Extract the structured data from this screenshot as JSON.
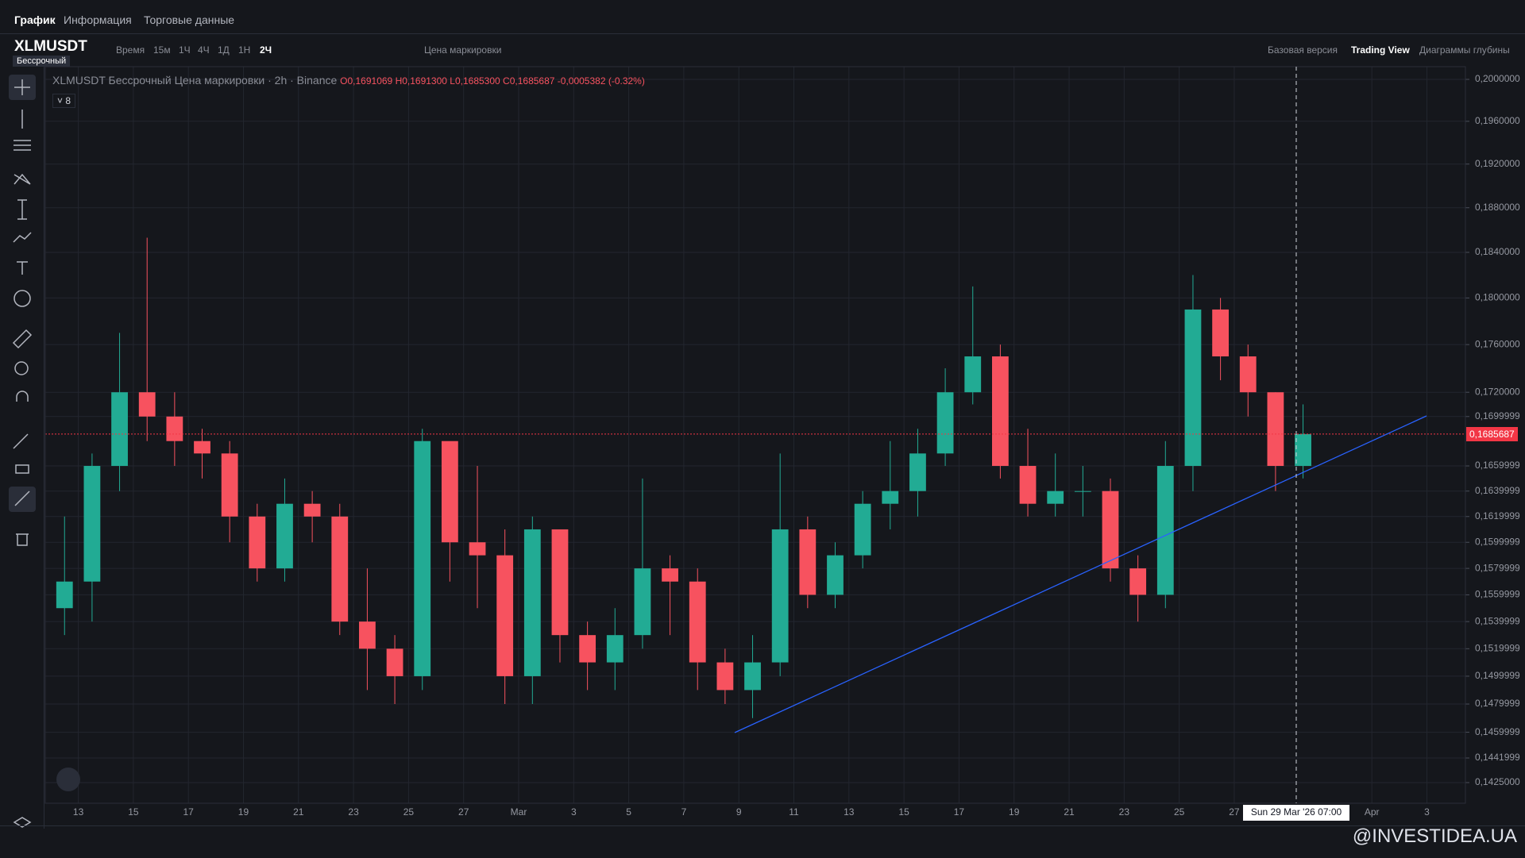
{
  "ui": {
    "tabs": [
      "График",
      "Информация",
      "Торговые данные"
    ],
    "symbol": "XLMUSDT",
    "contract": "Бессрочный",
    "intervals": [
      "Время",
      "15м",
      "1Ч",
      "4Ч",
      "1Д",
      "1Н",
      "2Ч"
    ],
    "price_type": "Цена маркировки",
    "views": [
      "Базовая версия",
      "Trading View",
      "Диаграммы глубины"
    ],
    "legend": {
      "title": "XLMUSDT Бессрочный Цена маркировки · 2h · Binance",
      "open": "O0,1691069",
      "high": "H0,1691300",
      "low": "L0,1685300",
      "close": "C0,1685687",
      "change": "-0,0005382 (-0.32%)"
    },
    "indicators_count": "8",
    "last_price": "0,1685687",
    "crosshair_label": "Sun 29 Mar '26   07:00",
    "watermark": "@INVESTIDEA.UA"
  },
  "chart_data": {
    "type": "candlestick",
    "log_y": true,
    "grid": true,
    "up_color": "#22ab94",
    "down_color": "#f7525f",
    "ylim": [
      0.1425,
      0.2
    ],
    "yticks": [
      {
        "value": 0.2,
        "label": "0,2000000"
      },
      {
        "value": 0.196,
        "label": "0,1960000"
      },
      {
        "value": 0.192,
        "label": "0,1920000"
      },
      {
        "value": 0.188,
        "label": "0,1880000"
      },
      {
        "value": 0.184,
        "label": "0,1840000"
      },
      {
        "value": 0.18,
        "label": "0,1800000"
      },
      {
        "value": 0.176,
        "label": "0,1760000"
      },
      {
        "value": 0.172,
        "label": "0,1720000"
      },
      {
        "value": 0.17,
        "label": "0,1699999"
      },
      {
        "value": 0.166,
        "label": "0,1659999"
      },
      {
        "value": 0.164,
        "label": "0,1639999"
      },
      {
        "value": 0.162,
        "label": "0,1619999"
      },
      {
        "value": 0.16,
        "label": "0,1599999"
      },
      {
        "value": 0.158,
        "label": "0,1579999"
      },
      {
        "value": 0.156,
        "label": "0,1559999"
      },
      {
        "value": 0.154,
        "label": "0,1539999"
      },
      {
        "value": 0.152,
        "label": "0,1519999"
      },
      {
        "value": 0.15,
        "label": "0,1499999"
      },
      {
        "value": 0.148,
        "label": "0,1479999"
      },
      {
        "value": 0.146,
        "label": "0,1459999"
      },
      {
        "value": 0.1442,
        "label": "0,1441999"
      },
      {
        "value": 0.1425,
        "label": "0,1425000"
      }
    ],
    "xlim": [
      -1.2,
      50.4
    ],
    "xticks": [
      {
        "value": 0,
        "label": "13"
      },
      {
        "value": 2,
        "label": "15"
      },
      {
        "value": 4,
        "label": "17"
      },
      {
        "value": 6,
        "label": "19"
      },
      {
        "value": 8,
        "label": "21"
      },
      {
        "value": 10,
        "label": "23"
      },
      {
        "value": 12,
        "label": "25"
      },
      {
        "value": 14,
        "label": "27"
      },
      {
        "value": 16,
        "label": "Mar"
      },
      {
        "value": 18,
        "label": "3"
      },
      {
        "value": 20,
        "label": "5"
      },
      {
        "value": 22,
        "label": "7"
      },
      {
        "value": 24,
        "label": "9"
      },
      {
        "value": 26,
        "label": "11"
      },
      {
        "value": 28,
        "label": "13"
      },
      {
        "value": 30,
        "label": "15"
      },
      {
        "value": 32,
        "label": "17"
      },
      {
        "value": 34,
        "label": "19"
      },
      {
        "value": 36,
        "label": "21"
      },
      {
        "value": 38,
        "label": "23"
      },
      {
        "value": 40,
        "label": "25"
      },
      {
        "value": 42,
        "label": "27"
      },
      {
        "value": 47,
        "label": "Apr"
      },
      {
        "value": 49,
        "label": "3"
      }
    ],
    "last_value": 0.1685687,
    "candles": {
      "x": [
        -1,
        0,
        1,
        2,
        3,
        4,
        5,
        6,
        7,
        8,
        9,
        10,
        11,
        12,
        13,
        14,
        15,
        16,
        17,
        18,
        19,
        20,
        21,
        22,
        23,
        24,
        25,
        26,
        27,
        28,
        29,
        30,
        31,
        32,
        33,
        34,
        35,
        36,
        37,
        38,
        39,
        40,
        41,
        42,
        43,
        44
      ],
      "open": [
        0.155,
        0.157,
        0.166,
        0.172,
        0.17,
        0.168,
        0.167,
        0.162,
        0.158,
        0.163,
        0.162,
        0.154,
        0.152,
        0.15,
        0.168,
        0.16,
        0.159,
        0.15,
        0.161,
        0.153,
        0.151,
        0.153,
        0.158,
        0.157,
        0.151,
        0.149,
        0.151,
        0.161,
        0.156,
        0.159,
        0.163,
        0.164,
        0.167,
        0.172,
        0.175,
        0.166,
        0.163,
        0.164,
        0.164,
        0.158,
        0.156,
        0.166,
        0.179,
        0.175,
        0.172,
        0.166
      ],
      "high": [
        0.162,
        0.167,
        0.177,
        0.1853,
        0.172,
        0.169,
        0.168,
        0.163,
        0.165,
        0.164,
        0.163,
        0.158,
        0.153,
        0.169,
        0.167,
        0.166,
        0.161,
        0.162,
        0.16,
        0.154,
        0.155,
        0.165,
        0.159,
        0.158,
        0.152,
        0.153,
        0.167,
        0.162,
        0.16,
        0.164,
        0.168,
        0.169,
        0.174,
        0.181,
        0.176,
        0.169,
        0.167,
        0.166,
        0.165,
        0.159,
        0.168,
        0.182,
        0.18,
        0.176,
        0.172,
        0.171
      ],
      "low": [
        0.153,
        0.154,
        0.164,
        0.168,
        0.166,
        0.165,
        0.16,
        0.157,
        0.157,
        0.16,
        0.153,
        0.149,
        0.148,
        0.149,
        0.157,
        0.155,
        0.148,
        0.148,
        0.151,
        0.149,
        0.149,
        0.152,
        0.153,
        0.149,
        0.148,
        0.147,
        0.15,
        0.155,
        0.155,
        0.158,
        0.161,
        0.162,
        0.166,
        0.171,
        0.165,
        0.162,
        0.162,
        0.162,
        0.157,
        0.154,
        0.155,
        0.164,
        0.173,
        0.17,
        0.164,
        0.165
      ],
      "close": [
        0.157,
        0.166,
        0.172,
        0.17,
        0.168,
        0.167,
        0.162,
        0.158,
        0.163,
        0.162,
        0.154,
        0.152,
        0.15,
        0.168,
        0.16,
        0.159,
        0.15,
        0.161,
        0.153,
        0.151,
        0.153,
        0.158,
        0.157,
        0.151,
        0.149,
        0.151,
        0.161,
        0.156,
        0.159,
        0.163,
        0.164,
        0.167,
        0.172,
        0.175,
        0.166,
        0.163,
        0.164,
        0.164,
        0.158,
        0.156,
        0.166,
        0.179,
        0.175,
        0.172,
        0.166,
        0.1685687
      ]
    }
  }
}
